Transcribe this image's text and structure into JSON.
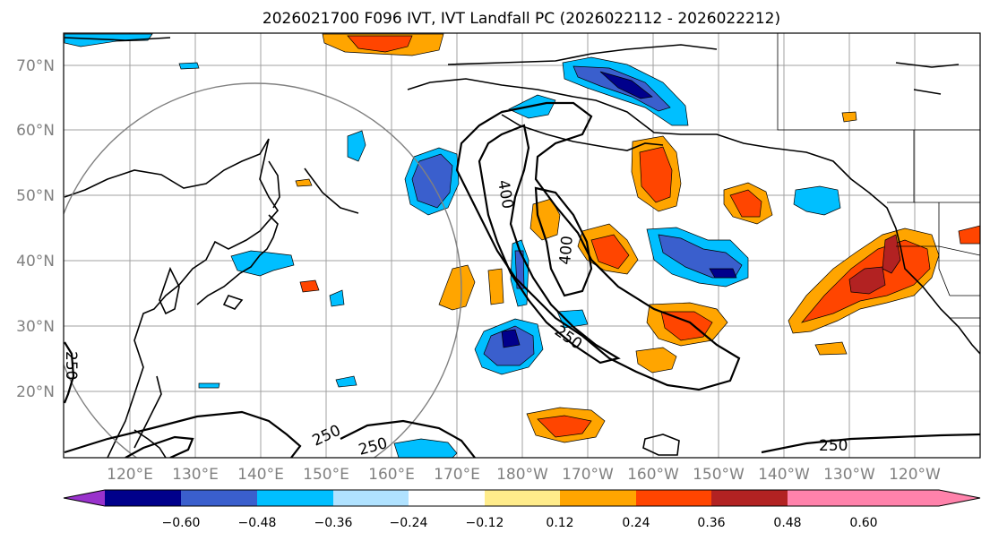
{
  "title": "2026021700 F096 IVT, IVT Landfall PC (2026022112 - 2026022212)",
  "lat_labels": [
    "70°N",
    "60°N",
    "50°N",
    "40°N",
    "30°N",
    "20°N"
  ],
  "lon_labels": [
    "120°E",
    "130°E",
    "140°E",
    "150°E",
    "160°E",
    "170°E",
    "180°W",
    "170°W",
    "160°W",
    "150°W",
    "140°W",
    "130°W",
    "120°W"
  ],
  "colorbar": {
    "ticks": [
      "−0.60",
      "−0.48",
      "−0.36",
      "−0.24",
      "−0.12",
      "0.12",
      "0.24",
      "0.36",
      "0.48",
      "0.60"
    ],
    "colors": [
      "#9932cc",
      "#00008b",
      "#3a5fcd",
      "#00bfff",
      "#b0e2ff",
      "#ffffff",
      "#ffec8b",
      "#ffa500",
      "#ff4500",
      "#b22222",
      "#ff82ab"
    ]
  },
  "contour_labels": [
    "400",
    "400",
    "250",
    "250",
    "250",
    "250",
    "250"
  ]
}
